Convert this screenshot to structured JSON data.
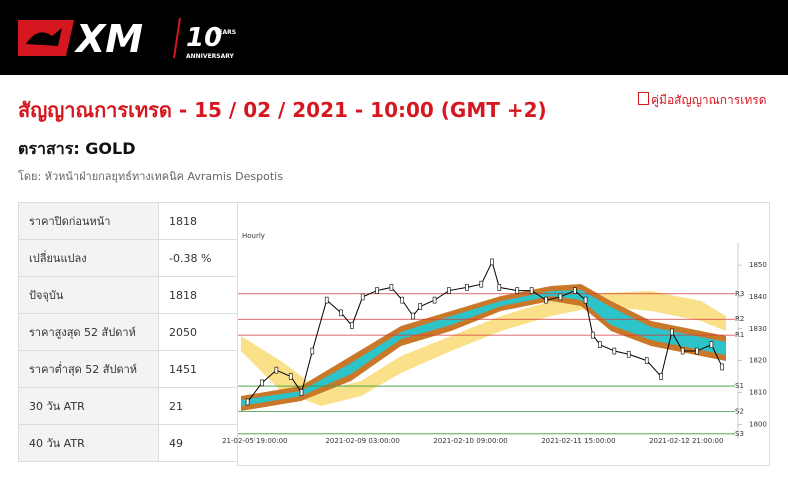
{
  "header": {
    "logo": "XM",
    "badge": "10",
    "badge_sub": "YEARS",
    "badge_caption": "ANNIVERSARY"
  },
  "title": "สัญญาณการเทรด - 15 / 02 / 2021 - 10:00 (GMT +2)",
  "guide_link": "คู่มือสัญญาณการเทรด",
  "instrument": "ตราสาร: GOLD",
  "author": "โดย: หัวหน้าฝ่ายกลยุทธ์ทางเทคนิค Avramis Despotis",
  "table": {
    "rows": [
      [
        "ราคาปิดก่อนหน้า",
        "1818"
      ],
      [
        "เปลี่ยนแปลง",
        "-0.38 %"
      ],
      [
        "ปัจจุบัน",
        "1818"
      ],
      [
        "ราคาสูงสุด 52 สัปดาห์",
        "2050"
      ],
      [
        "ราคาต่ำสุด 52 สัปดาห์",
        "1451"
      ],
      [
        "30 วัน ATR",
        "21"
      ],
      [
        "40 วัน ATR",
        "49"
      ]
    ]
  },
  "chart_data": {
    "type": "line",
    "title": "Hourly",
    "color": "#000000",
    "x": [
      1,
      5,
      9,
      13,
      16,
      19,
      23,
      27,
      30,
      33,
      37,
      41,
      44,
      47,
      49,
      53,
      57,
      62,
      66,
      69,
      71,
      76,
      80,
      84,
      88,
      92,
      95,
      97,
      99,
      103,
      107,
      112,
      116,
      119,
      122,
      126,
      130,
      133
    ],
    "values": [
      1807,
      1813,
      1817,
      1815,
      1810,
      1823,
      1839,
      1835,
      1831,
      1840,
      1842,
      1843,
      1839,
      1834,
      1837,
      1839,
      1842,
      1843,
      1844,
      1851,
      1843,
      1842,
      1842,
      1839,
      1840,
      1842,
      1839,
      1828,
      1825,
      1823,
      1822,
      1820,
      1815,
      1829,
      1823,
      1823,
      1825,
      1818
    ],
    "xlim": [
      0,
      136
    ],
    "xticks": [
      {
        "value": 3,
        "label": "21-02-05 19:00:00"
      },
      {
        "value": 33,
        "label": "2021-02-09 03:00:00"
      },
      {
        "value": 63,
        "label": "2021-02-10 09:00:00"
      },
      {
        "value": 93,
        "label": "2021-02-11 15:00:00"
      },
      {
        "value": 123,
        "label": "2021-02-12 21:00:00"
      }
    ],
    "ylim": [
      1796,
      1856
    ],
    "yticks": [
      1800,
      1810,
      1820,
      1830,
      1840,
      1850
    ],
    "levels": [
      {
        "label": "R3",
        "value": 1841,
        "color": "#d33a3a"
      },
      {
        "label": "R2",
        "value": 1833,
        "color": "#d33a3a"
      },
      {
        "label": "R1",
        "value": 1828,
        "color": "#d33a3a"
      },
      {
        "label": "S1",
        "value": 1812,
        "color": "#3a9a3a"
      },
      {
        "label": "S2",
        "value": 1804,
        "color": "#3a9a3a"
      },
      {
        "label": "S3",
        "value": 1797,
        "color": "#3a9a3a"
      }
    ]
  }
}
